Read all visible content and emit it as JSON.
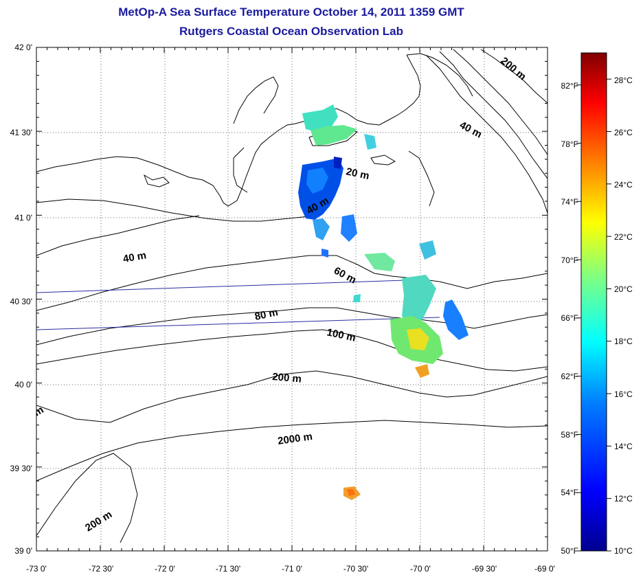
{
  "header": {
    "title": "MetOp-A Sea Surface Temperature October 14, 2011 1359 GMT",
    "subtitle": "Rutgers Coastal Ocean Observation Lab"
  },
  "axes": {
    "lat_labels": [
      "42 0'",
      "41 30'",
      "41 0'",
      "40 30'",
      "40 0'",
      "39 30'",
      "39 0'"
    ],
    "lon_labels": [
      "-73 0'",
      "-72 30'",
      "-72 0'",
      "-71 30'",
      "-71 0'",
      "-70 30'",
      "-70 0'",
      "-69 30'",
      "-69 0'"
    ]
  },
  "colorbar": {
    "celsius_labels": [
      "28°C",
      "26°C",
      "24°C",
      "22°C",
      "20°C",
      "18°C",
      "16°C",
      "14°C",
      "12°C",
      "10°C"
    ],
    "fahrenheit_labels": [
      "82°F",
      "78°F",
      "74°F",
      "70°F",
      "66°F",
      "62°F",
      "58°F",
      "54°F",
      "50°F"
    ],
    "min_c": 10,
    "max_c": 29,
    "colors": [
      "#00008f",
      "#0000ff",
      "#0080ff",
      "#00ffff",
      "#80ff80",
      "#ffff00",
      "#ff8000",
      "#ff0000",
      "#800000"
    ]
  },
  "contour_labels": [
    {
      "text": "200 m",
      "name": "label-200m-ne"
    },
    {
      "text": "40 m",
      "name": "label-40m-ne"
    },
    {
      "text": "20 m",
      "name": "label-20m"
    },
    {
      "text": "40 m",
      "name": "label-40m-center"
    },
    {
      "text": "40 m",
      "name": "label-40m-west"
    },
    {
      "text": "60 m",
      "name": "label-60m"
    },
    {
      "text": "80 m",
      "name": "label-80m"
    },
    {
      "text": "100 m",
      "name": "label-100m"
    },
    {
      "text": "200 m",
      "name": "label-200m-mid"
    },
    {
      "text": "2000 m",
      "name": "label-2000m"
    },
    {
      "text": "200 m",
      "name": "label-200m-sw"
    },
    {
      "text": "m",
      "name": "label-m-west-edge"
    }
  ]
}
